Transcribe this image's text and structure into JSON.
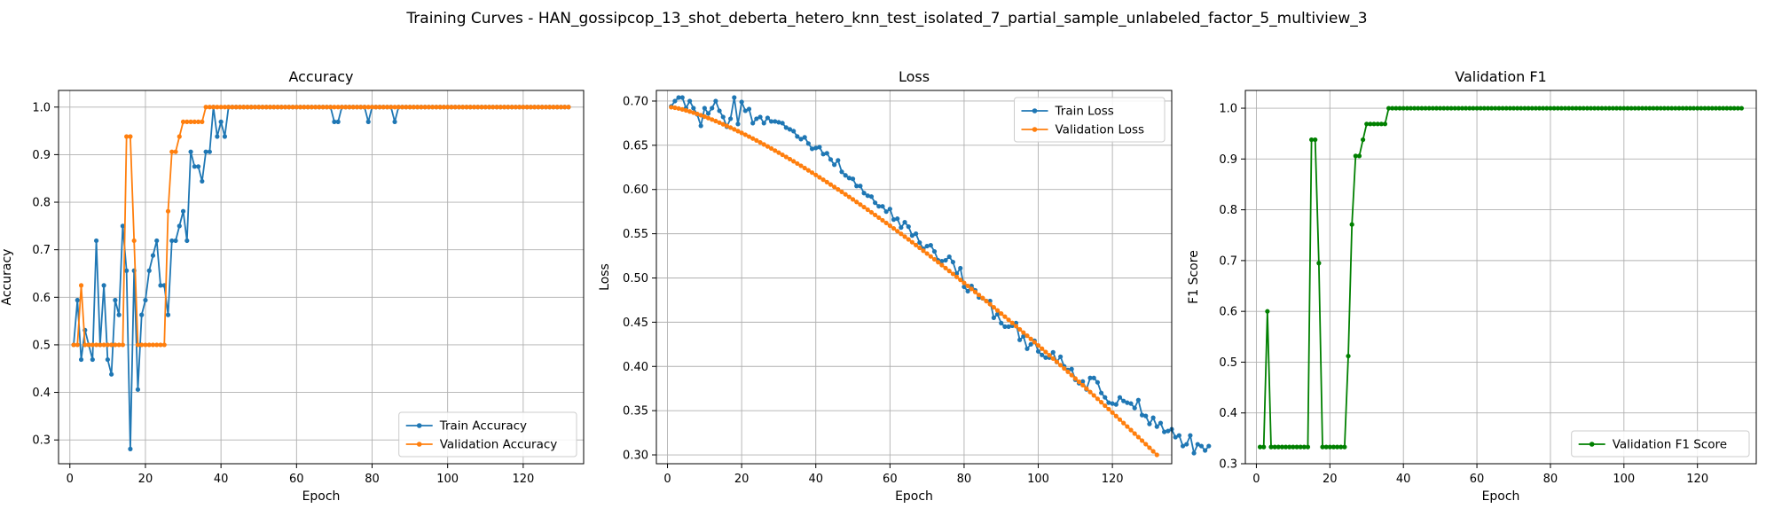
{
  "figure": {
    "title": "Training Curves - HAN_gossipcop_13_shot_deberta_hetero_knn_test_isolated_7_partial_sample_unlabeled_factor_5_multiview_3"
  },
  "chart_data": [
    {
      "type": "line",
      "title": "Accuracy",
      "xlabel": "Epoch",
      "ylabel": "Accuracy",
      "xlim": [
        -3,
        136
      ],
      "ylim": [
        0.25,
        1.035
      ],
      "xticks": [
        0,
        20,
        40,
        60,
        80,
        100,
        120
      ],
      "yticks": [
        0.3,
        0.4,
        0.5,
        0.6,
        0.7,
        0.8,
        0.9,
        1.0
      ],
      "grid": true,
      "legend": "lower-right",
      "series": [
        {
          "name": "Train Accuracy",
          "color": "#1f77b4",
          "x": [
            1,
            2,
            3,
            4,
            5,
            6,
            7,
            8,
            9,
            10,
            11,
            12,
            13,
            14,
            15,
            16,
            17,
            18,
            19,
            20,
            21,
            22,
            23,
            24,
            25,
            26,
            27,
            28,
            29,
            30,
            31,
            32,
            33,
            34,
            35,
            36,
            37,
            38,
            39,
            40,
            41,
            42,
            70,
            71,
            79,
            86
          ],
          "y": [
            0.5,
            0.594,
            0.469,
            0.531,
            0.5,
            0.469,
            0.719,
            0.5,
            0.625,
            0.469,
            0.438,
            0.594,
            0.563,
            0.75,
            0.656,
            0.281,
            0.656,
            0.406,
            0.563,
            0.594,
            0.656,
            0.688,
            0.719,
            0.625,
            0.625,
            0.563,
            0.719,
            0.719,
            0.75,
            0.781,
            0.719,
            0.906,
            0.875,
            0.875,
            0.844,
            0.906,
            0.906,
            1.0,
            0.938,
            0.969,
            0.938,
            1.0,
            0.969,
            0.969,
            0.969,
            0.969
          ],
          "others_value": 1.0,
          "x_max": 132
        },
        {
          "name": "Validation Accuracy",
          "color": "#ff7f0e",
          "x": [
            1,
            2,
            3,
            4,
            5,
            6,
            7,
            8,
            9,
            10,
            11,
            12,
            13,
            14,
            15,
            16,
            17,
            18,
            19,
            20,
            21,
            22,
            23,
            24,
            25,
            26,
            27,
            28,
            29,
            30,
            31,
            32,
            33,
            34,
            35,
            36
          ],
          "y": [
            0.5,
            0.5,
            0.625,
            0.5,
            0.5,
            0.5,
            0.5,
            0.5,
            0.5,
            0.5,
            0.5,
            0.5,
            0.5,
            0.5,
            0.938,
            0.938,
            0.719,
            0.5,
            0.5,
            0.5,
            0.5,
            0.5,
            0.5,
            0.5,
            0.5,
            0.781,
            0.906,
            0.906,
            0.938,
            0.969,
            0.969,
            0.969,
            0.969,
            0.969,
            0.969,
            1.0
          ],
          "others_value": 1.0,
          "x_max": 132
        }
      ]
    },
    {
      "type": "line",
      "title": "Loss",
      "xlabel": "Epoch",
      "ylabel": "Loss",
      "xlim": [
        -3,
        136
      ],
      "ylim": [
        0.29,
        0.712
      ],
      "xticks": [
        0,
        20,
        40,
        60,
        80,
        100,
        120
      ],
      "yticks": [
        0.3,
        0.35,
        0.4,
        0.45,
        0.5,
        0.55,
        0.6,
        0.65,
        0.7
      ],
      "tick_format": "2",
      "grid": true,
      "legend": "upper-right",
      "series": [
        {
          "name": "Train Loss",
          "color": "#1f77b4",
          "x_start": 1,
          "y": [
            0.694,
            0.7,
            0.704,
            0.704,
            0.692,
            0.7,
            0.692,
            0.685,
            0.672,
            0.692,
            0.686,
            0.692,
            0.7,
            0.689,
            0.682,
            0.671,
            0.68,
            0.704,
            0.674,
            0.699,
            0.689,
            0.691,
            0.675,
            0.68,
            0.682,
            0.675,
            0.681,
            0.677,
            0.677,
            0.676,
            0.675,
            0.67,
            0.668,
            0.666,
            0.66,
            0.657,
            0.659,
            0.652,
            0.646,
            0.647,
            0.648,
            0.64,
            0.641,
            0.634,
            0.628,
            0.633,
            0.62,
            0.616,
            0.613,
            0.612,
            0.604,
            0.604,
            0.596,
            0.593,
            0.592,
            0.585,
            0.581,
            0.581,
            0.575,
            0.578,
            0.566,
            0.567,
            0.557,
            0.563,
            0.558,
            0.548,
            0.55,
            0.54,
            0.533,
            0.536,
            0.537,
            0.53,
            0.52,
            0.519,
            0.52,
            0.524,
            0.518,
            0.505,
            0.511,
            0.49,
            0.485,
            0.491,
            0.486,
            0.478,
            0.477,
            0.474,
            0.474,
            0.455,
            0.459,
            0.449,
            0.445,
            0.445,
            0.446,
            0.449,
            0.43,
            0.434,
            0.42,
            0.425,
            0.429,
            0.417,
            0.413,
            0.41,
            0.41,
            0.416,
            0.405,
            0.411,
            0.4,
            0.396,
            0.397,
            0.385,
            0.381,
            0.383,
            0.374,
            0.387,
            0.387,
            0.382,
            0.37,
            0.365,
            0.359,
            0.358,
            0.357,
            0.365,
            0.361,
            0.359,
            0.358,
            0.353,
            0.362,
            0.345,
            0.344,
            0.335,
            0.342,
            0.332,
            0.336,
            0.326,
            0.327,
            0.329,
            0.32,
            0.322,
            0.31,
            0.312,
            0.322,
            0.302,
            0.312,
            0.31,
            0.305,
            0.31
          ]
        },
        {
          "name": "Validation Loss",
          "color": "#ff7f0e",
          "x_start": 1,
          "x_end": 132,
          "y_start": 0.693,
          "y_end": 0.3
        }
      ]
    },
    {
      "type": "line",
      "title": "Validation F1",
      "xlabel": "Epoch",
      "ylabel": "F1 Score",
      "xlim": [
        -3,
        136
      ],
      "ylim": [
        0.3,
        1.035
      ],
      "xticks": [
        0,
        20,
        40,
        60,
        80,
        100,
        120
      ],
      "yticks": [
        0.3,
        0.4,
        0.5,
        0.6,
        0.7,
        0.8,
        0.9,
        1.0
      ],
      "grid": true,
      "legend": "lower-right",
      "series": [
        {
          "name": "Validation F1 Score",
          "color": "#008000",
          "x": [
            1,
            2,
            3,
            4,
            5,
            6,
            7,
            8,
            9,
            10,
            11,
            12,
            13,
            14,
            15,
            16,
            17,
            18,
            19,
            20,
            21,
            22,
            23,
            24,
            25,
            26,
            27,
            28,
            29,
            30,
            31,
            32,
            33,
            34,
            35,
            36
          ],
          "y": [
            0.333,
            0.333,
            0.6,
            0.333,
            0.333,
            0.333,
            0.333,
            0.333,
            0.333,
            0.333,
            0.333,
            0.333,
            0.333,
            0.333,
            0.938,
            0.938,
            0.695,
            0.333,
            0.333,
            0.333,
            0.333,
            0.333,
            0.333,
            0.333,
            0.512,
            0.771,
            0.906,
            0.906,
            0.938,
            0.969,
            0.969,
            0.969,
            0.969,
            0.969,
            0.969,
            1.0
          ],
          "others_value": 1.0,
          "x_max": 132
        }
      ]
    }
  ]
}
